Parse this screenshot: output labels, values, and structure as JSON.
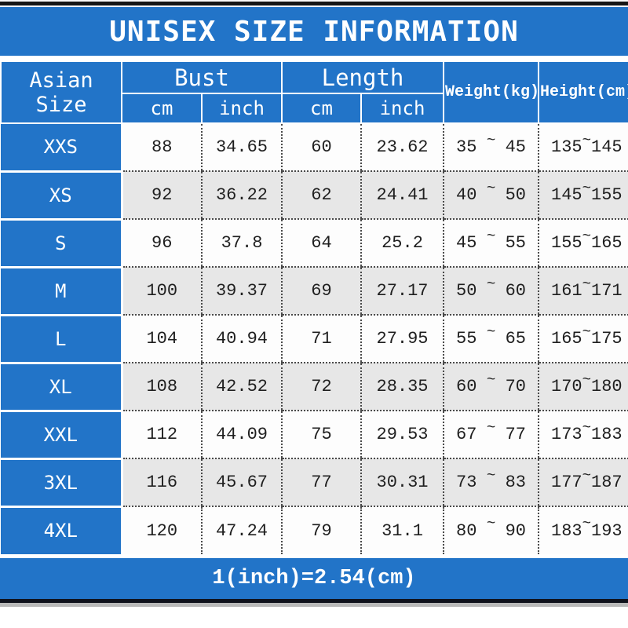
{
  "title": "UNISEX SIZE INFORMATION",
  "footer": {
    "note": "1(inch)=2.54(cm)"
  },
  "colors": {
    "accent_blue": "#2274c8",
    "row_alt_gray": "#e7e7e7",
    "top_bottom_bar_black": "#161616",
    "text_dark": "#1f1f1f"
  },
  "table": {
    "header": {
      "asian_size": "Asian Size",
      "bust": "Bust",
      "length": "Length",
      "weight": "Weight(kg)",
      "height": "Height(cm)",
      "bust_cm": "cm",
      "bust_inch": "inch",
      "length_cm": "cm",
      "length_inch": "inch"
    },
    "range_separator": "~",
    "rows": [
      {
        "size": "XXS",
        "bust_cm": "88",
        "bust_inch": "34.65",
        "length_cm": "60",
        "length_inch": "23.62",
        "weight_min": "35",
        "weight_max": "45",
        "height_min": "135",
        "height_max": "145"
      },
      {
        "size": "XS",
        "bust_cm": "92",
        "bust_inch": "36.22",
        "length_cm": "62",
        "length_inch": "24.41",
        "weight_min": "40",
        "weight_max": "50",
        "height_min": "145",
        "height_max": "155"
      },
      {
        "size": "S",
        "bust_cm": "96",
        "bust_inch": "37.8",
        "length_cm": "64",
        "length_inch": "25.2",
        "weight_min": "45",
        "weight_max": "55",
        "height_min": "155",
        "height_max": "165"
      },
      {
        "size": "M",
        "bust_cm": "100",
        "bust_inch": "39.37",
        "length_cm": "69",
        "length_inch": "27.17",
        "weight_min": "50",
        "weight_max": "60",
        "height_min": "161",
        "height_max": "171"
      },
      {
        "size": "L",
        "bust_cm": "104",
        "bust_inch": "40.94",
        "length_cm": "71",
        "length_inch": "27.95",
        "weight_min": "55",
        "weight_max": "65",
        "height_min": "165",
        "height_max": "175"
      },
      {
        "size": "XL",
        "bust_cm": "108",
        "bust_inch": "42.52",
        "length_cm": "72",
        "length_inch": "28.35",
        "weight_min": "60",
        "weight_max": "70",
        "height_min": "170",
        "height_max": "180"
      },
      {
        "size": "XXL",
        "bust_cm": "112",
        "bust_inch": "44.09",
        "length_cm": "75",
        "length_inch": "29.53",
        "weight_min": "67",
        "weight_max": "77",
        "height_min": "173",
        "height_max": "183"
      },
      {
        "size": "3XL",
        "bust_cm": "116",
        "bust_inch": "45.67",
        "length_cm": "77",
        "length_inch": "30.31",
        "weight_min": "73",
        "weight_max": "83",
        "height_min": "177",
        "height_max": "187"
      },
      {
        "size": "4XL",
        "bust_cm": "120",
        "bust_inch": "47.24",
        "length_cm": "79",
        "length_inch": "31.1",
        "weight_min": "80",
        "weight_max": "90",
        "height_min": "183",
        "height_max": "193"
      }
    ]
  },
  "chart_data": {
    "type": "table",
    "title": "UNISEX SIZE INFORMATION",
    "columns": [
      "Asian Size",
      "Bust cm",
      "Bust inch",
      "Length cm",
      "Length inch",
      "Weight(kg)",
      "Height(cm)"
    ],
    "rows": [
      [
        "XXS",
        88,
        34.65,
        60,
        23.62,
        "35~45",
        "135~145"
      ],
      [
        "XS",
        92,
        36.22,
        62,
        24.41,
        "40~50",
        "145~155"
      ],
      [
        "S",
        96,
        37.8,
        64,
        25.2,
        "45~55",
        "155~165"
      ],
      [
        "M",
        100,
        39.37,
        69,
        27.17,
        "50~60",
        "161~171"
      ],
      [
        "L",
        104,
        40.94,
        71,
        27.95,
        "55~65",
        "165~175"
      ],
      [
        "XL",
        108,
        42.52,
        72,
        28.35,
        "60~70",
        "170~180"
      ],
      [
        "XXL",
        112,
        44.09,
        75,
        29.53,
        "67~77",
        "173~183"
      ],
      [
        "3XL",
        116,
        45.67,
        77,
        30.31,
        "73~83",
        "177~187"
      ],
      [
        "4XL",
        120,
        47.24,
        79,
        31.1,
        "80~90",
        "183~193"
      ]
    ],
    "note": "1(inch)=2.54(cm)"
  }
}
